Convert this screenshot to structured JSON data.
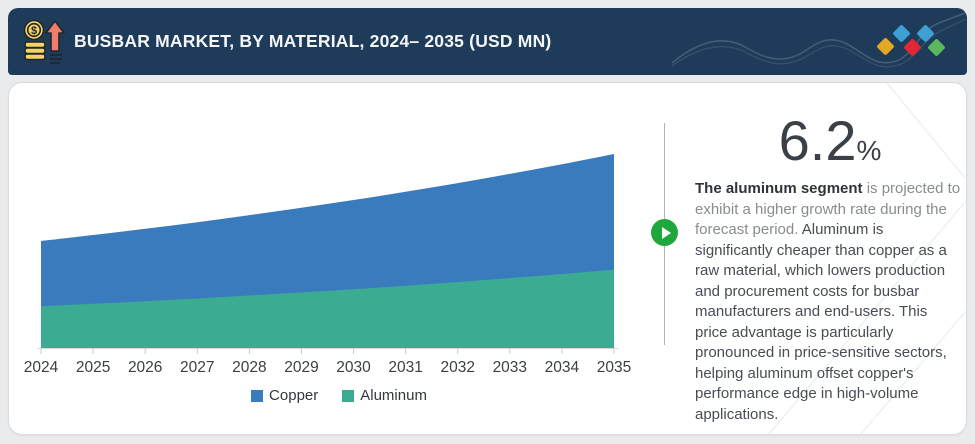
{
  "page": {
    "background": "#eaebed"
  },
  "header": {
    "title": "BUSBAR MARKET, BY MATERIAL, 2024– 2035 (USD MN)",
    "background": "#1e3c5a",
    "icon": "money-growth-icon",
    "diamond_colors": [
      "#E5A823",
      "#3D9FD3",
      "#E32636",
      "#3D9FD3",
      "#5CB85C"
    ]
  },
  "chart_data": {
    "type": "area",
    "stacked": true,
    "title": "BUSBAR MARKET, BY MATERIAL, 2024– 2035 (USD MN)",
    "categories": [
      "2024",
      "2025",
      "2026",
      "2027",
      "2028",
      "2029",
      "2030",
      "2031",
      "2032",
      "2033",
      "2034",
      "2035"
    ],
    "series": [
      {
        "name": "Copper",
        "color": "#3A7BBE",
        "values": [
          65.3,
          68.8,
          72.4,
          76.3,
          80.4,
          84.7,
          89.2,
          93.9,
          98.9,
          104.2,
          109.7,
          115.6
        ]
      },
      {
        "name": "Aluminum",
        "color": "#3BAC92",
        "values": [
          41.7,
          44.2,
          46.8,
          49.5,
          52.5,
          55.6,
          58.8,
          62.3,
          66.0,
          69.9,
          74.0,
          78.4
        ]
      }
    ],
    "xlabel": "",
    "ylabel": "",
    "y_axis_visible": false,
    "grid": false,
    "legend_position": "bottom",
    "note": "No y-axis shown in source; series values are relative estimates read from area heights"
  },
  "legend": {
    "items": [
      {
        "label": "Copper",
        "color": "#3A7BBE"
      },
      {
        "label": "Aluminum",
        "color": "#3BAC92"
      }
    ]
  },
  "insight": {
    "growth_value": "6.2",
    "growth_unit": "%",
    "lead_bold": "The aluminum segment",
    "lead_rest": " is projected to exhibit a higher growth rate during the forecast period. ",
    "body": "Aluminum is significantly cheaper than copper as a raw material, which lowers production and procurement costs for busbar manufacturers and end-users. This price advantage is particularly pronounced in price-sensitive sectors, helping aluminum offset copper's performance edge in high-volume applications."
  }
}
